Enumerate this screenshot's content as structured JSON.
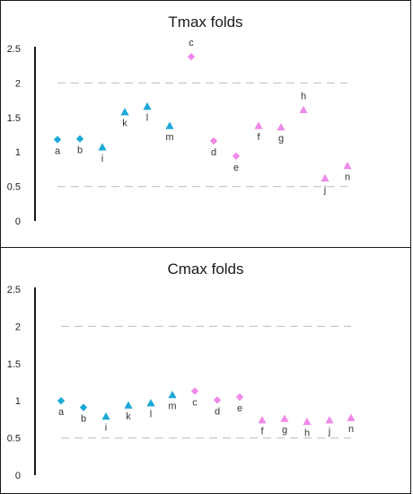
{
  "colors": {
    "blue": "#1ba8d8",
    "pink": "#ef8ae8",
    "threshold": "#c8c8c8",
    "axis": "#1a1a1a"
  },
  "chart_data": [
    {
      "type": "scatter",
      "title": "Tmax folds",
      "xlabel": "",
      "ylabel": "",
      "ylim": [
        0,
        2.5
      ],
      "yticks": [
        "0",
        "0.5",
        "1",
        "1.5",
        "2",
        "2.5"
      ],
      "grid": false,
      "reference_lines": [
        0.5,
        2
      ],
      "points": [
        {
          "label": "a",
          "y": 1.18,
          "marker": "diamond",
          "color": "blue"
        },
        {
          "label": "b",
          "y": 1.19,
          "marker": "diamond",
          "color": "blue"
        },
        {
          "label": "i",
          "y": 1.07,
          "marker": "triangle",
          "color": "blue"
        },
        {
          "label": "k",
          "y": 1.58,
          "marker": "triangle",
          "color": "blue"
        },
        {
          "label": "l",
          "y": 1.66,
          "marker": "triangle",
          "color": "blue"
        },
        {
          "label": "m",
          "y": 1.38,
          "marker": "triangle",
          "color": "blue"
        },
        {
          "label": "c",
          "y": 2.38,
          "marker": "diamond",
          "color": "pink"
        },
        {
          "label": "d",
          "y": 1.16,
          "marker": "diamond",
          "color": "pink"
        },
        {
          "label": "e",
          "y": 0.94,
          "marker": "diamond",
          "color": "pink"
        },
        {
          "label": "f",
          "y": 1.38,
          "marker": "triangle",
          "color": "pink"
        },
        {
          "label": "g",
          "y": 1.36,
          "marker": "triangle",
          "color": "pink"
        },
        {
          "label": "h",
          "y": 1.61,
          "marker": "triangle",
          "color": "pink"
        },
        {
          "label": "j",
          "y": 0.62,
          "marker": "triangle",
          "color": "pink"
        },
        {
          "label": "n",
          "y": 0.8,
          "marker": "triangle",
          "color": "pink"
        }
      ]
    },
    {
      "type": "scatter",
      "title": "Cmax folds",
      "xlabel": "",
      "ylabel": "",
      "ylim": [
        0,
        2.5
      ],
      "yticks": [
        "0",
        "0.5",
        "1",
        "1.5",
        "2",
        "2.5"
      ],
      "grid": false,
      "reference_lines": [
        0.5,
        2
      ],
      "points": [
        {
          "label": "a",
          "y": 1.0,
          "marker": "diamond",
          "color": "blue"
        },
        {
          "label": "b",
          "y": 0.91,
          "marker": "diamond",
          "color": "blue"
        },
        {
          "label": "i",
          "y": 0.79,
          "marker": "triangle",
          "color": "blue"
        },
        {
          "label": "k",
          "y": 0.94,
          "marker": "triangle",
          "color": "blue"
        },
        {
          "label": "l",
          "y": 0.97,
          "marker": "triangle",
          "color": "blue"
        },
        {
          "label": "m",
          "y": 1.08,
          "marker": "triangle",
          "color": "blue"
        },
        {
          "label": "c",
          "y": 1.13,
          "marker": "diamond",
          "color": "pink"
        },
        {
          "label": "d",
          "y": 1.01,
          "marker": "diamond",
          "color": "pink"
        },
        {
          "label": "e",
          "y": 1.05,
          "marker": "diamond",
          "color": "pink"
        },
        {
          "label": "f",
          "y": 0.74,
          "marker": "triangle",
          "color": "pink"
        },
        {
          "label": "g",
          "y": 0.76,
          "marker": "triangle",
          "color": "pink"
        },
        {
          "label": "h",
          "y": 0.72,
          "marker": "triangle",
          "color": "pink"
        },
        {
          "label": "j",
          "y": 0.74,
          "marker": "triangle",
          "color": "pink"
        },
        {
          "label": "n",
          "y": 0.77,
          "marker": "triangle",
          "color": "pink"
        }
      ]
    }
  ]
}
